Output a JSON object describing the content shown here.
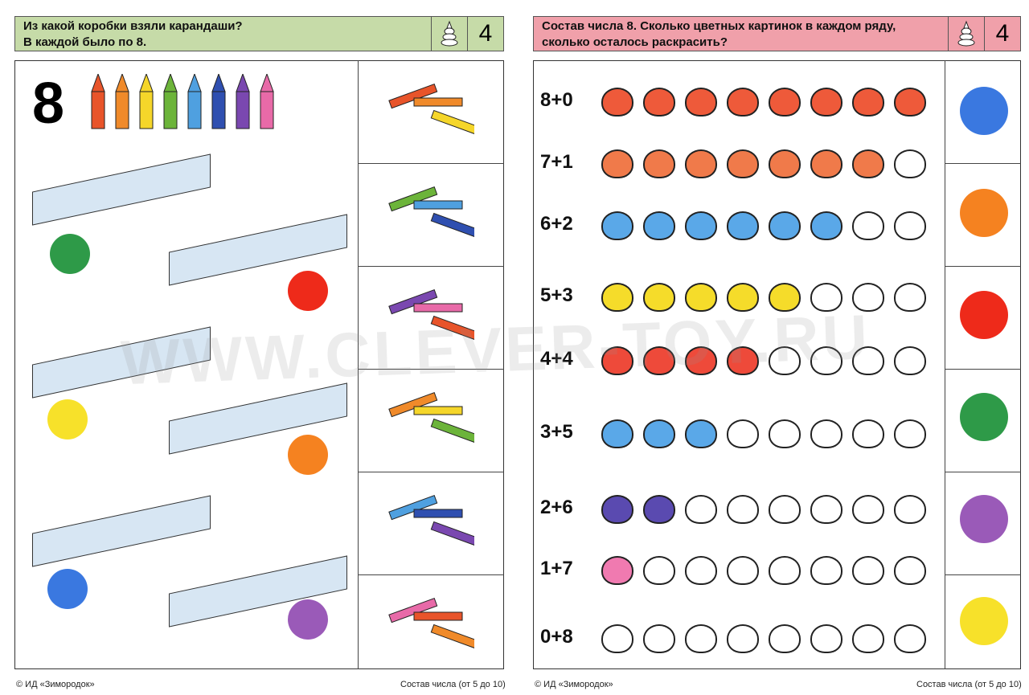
{
  "left_page": {
    "header": {
      "title_line1": "Из какой коробки взяли карандаши?",
      "title_line2": "В каждой было по 8.",
      "level": "4",
      "color": "#c6dba8"
    },
    "big_number": "8",
    "pencil_colors": [
      "#e8542a",
      "#f08a2a",
      "#f5d62a",
      "#6cb43a",
      "#4fa0e0",
      "#2f4fb0",
      "#7a48b0",
      "#e86aa8"
    ],
    "box_dots": [
      "#2e9a48",
      "#ee2a1a",
      "#f7e12a",
      "#f58220",
      "#3a78e0",
      "#9a5ab8"
    ],
    "footer_left": "© ИД «Зимородок»",
    "footer_right": "Состав числа (от 5 до 10)"
  },
  "right_page": {
    "header": {
      "title_line1": "Состав числа 8. Сколько цветных картинок в каждом ряду,",
      "title_line2": "сколько осталось раскрасить?",
      "level": "4",
      "color": "#f0a0aa"
    },
    "rows": [
      {
        "label": "8+0",
        "colored": 8,
        "color": "#ee5a3a"
      },
      {
        "label": "7+1",
        "colored": 7,
        "color": "#f07a4a"
      },
      {
        "label": "6+2",
        "colored": 6,
        "color": "#5aa8e8"
      },
      {
        "label": "5+3",
        "colored": 5,
        "color": "#f5dc2a"
      },
      {
        "label": "4+4",
        "colored": 4,
        "color": "#ee4a3a"
      },
      {
        "label": "3+5",
        "colored": 3,
        "color": "#5aa8e8"
      },
      {
        "label": "2+6",
        "colored": 2,
        "color": "#5a4ab0"
      },
      {
        "label": "1+7",
        "colored": 1,
        "color": "#f07ab0"
      },
      {
        "label": "0+8",
        "colored": 0,
        "color": "#ffffff"
      }
    ],
    "side_dots": [
      "#3a78e0",
      "#f58220",
      "#ee2a1a",
      "#2e9a48",
      "#9a5ab8",
      "#f7e12a"
    ],
    "footer_left": "© ИД «Зимородок»",
    "footer_right": "Состав числа (от 5 до 10)"
  },
  "watermark": "WWW.CLEVER-TOY.RU"
}
